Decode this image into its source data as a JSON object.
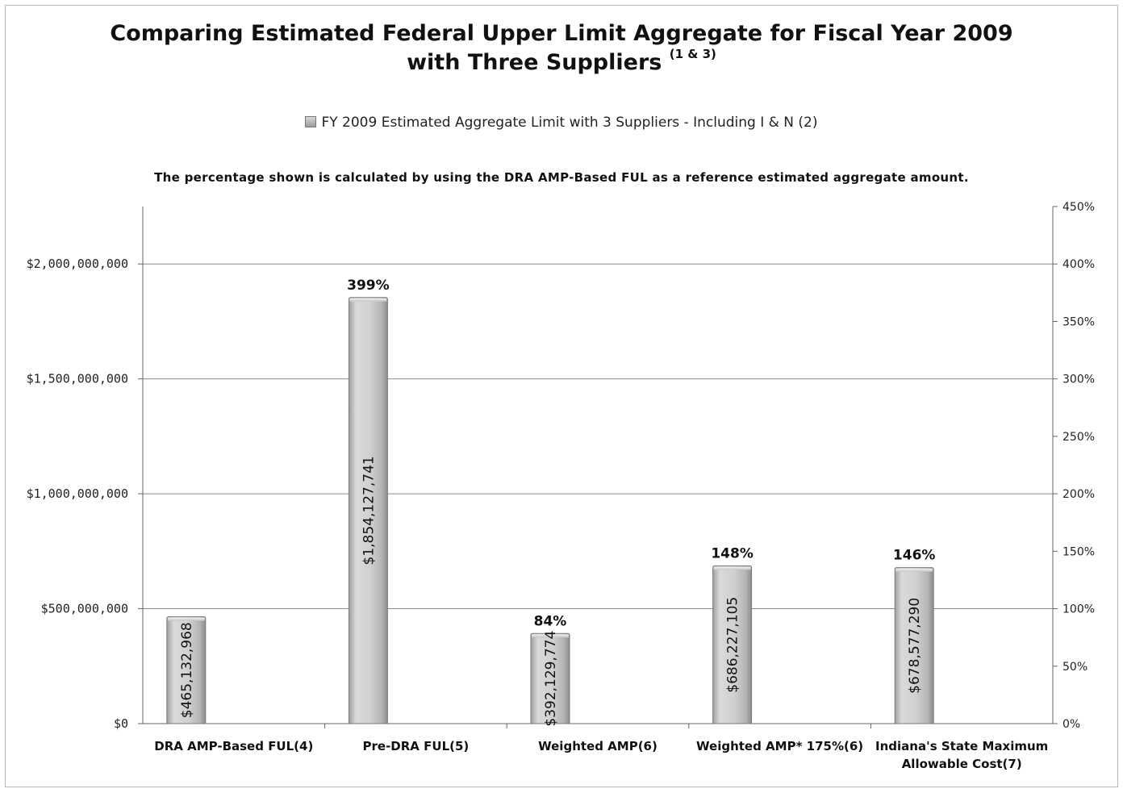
{
  "title_line1": "Comparing Estimated Federal Upper Limit Aggregate for Fiscal Year 2009",
  "title_line2": "with Three Suppliers",
  "title_sup": "(1 & 3)",
  "legend_label": "FY 2009  Estimated Aggregate Limit with 3 Suppliers - Including I & N (2)",
  "note": "The percentage shown is calculated by using the DRA AMP-Based FUL as a reference estimated  aggregate amount.",
  "colors": {
    "bar_light": "#e2e2e2",
    "bar_dark": "#a4a4a4",
    "bar_edge": "#7a7a7a",
    "grid": "#8c8c8c"
  },
  "chart_data": {
    "type": "bar",
    "categories": [
      [
        "DRA AMP-Based FUL(4)"
      ],
      [
        "Pre-DRA FUL(5)"
      ],
      [
        "Weighted AMP(6)"
      ],
      [
        "Weighted AMP* 175%(6)"
      ],
      [
        "Indiana's State Maximum",
        "Allowable Cost(7)"
      ]
    ],
    "values": [
      465132968,
      1854127741,
      392129774,
      686227105,
      678577290
    ],
    "value_labels": [
      "$465,132,968",
      "$1,854,127,741",
      "$392,129,774",
      "$686,227,105",
      "$678,577,290"
    ],
    "percent_labels": [
      "",
      "399%",
      "84%",
      "148%",
      "146%"
    ],
    "ylim": [
      0,
      2250000000
    ],
    "y_ticks": [
      0,
      500000000,
      1000000000,
      1500000000,
      2000000000
    ],
    "y_tick_labels": [
      "$0",
      "$500,000,000",
      "$1,000,000,000",
      "$1,500,000,000",
      "$2,000,000,000"
    ],
    "y2lim": [
      0,
      450
    ],
    "y2_tick_labels": [
      "0%",
      "50%",
      "100%",
      "150%",
      "200%",
      "250%",
      "300%",
      "350%",
      "400%",
      "450%"
    ],
    "grid": true,
    "legend_position": "top"
  }
}
